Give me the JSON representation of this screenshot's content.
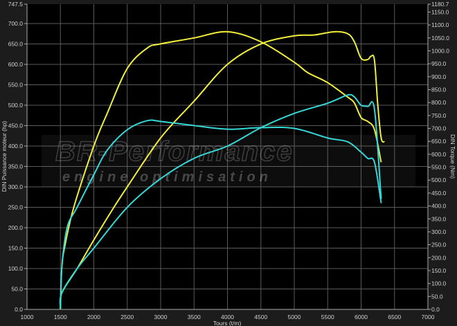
{
  "chart_data": {
    "type": "line",
    "xlabel": "Tours (t/m)",
    "ylabel": "DIN Puissance moteur (hp)",
    "y2label": "DIN Torque (Nm)",
    "xlim": [
      1000,
      7000
    ],
    "ylim": [
      0,
      747.5
    ],
    "y2lim": [
      0,
      1180.7
    ],
    "x_ticks": [
      1000,
      1500,
      2000,
      2500,
      3000,
      3500,
      4000,
      4500,
      5000,
      5500,
      6000,
      6500,
      7000
    ],
    "y_ticks": [
      "0.0",
      "50.0",
      "100.0",
      "150.0",
      "200.0",
      "250.0",
      "300.0",
      "350.0",
      "400.0",
      "450.0",
      "500.0",
      "550.0",
      "600.0",
      "650.0",
      "700.0",
      "747.5"
    ],
    "y2_ticks": [
      "0.0",
      "50.0",
      "100.0",
      "150.0",
      "200.0",
      "250.0",
      "300.0",
      "350.0",
      "400.0",
      "450.0",
      "500.0",
      "550.0",
      "600.0",
      "650.0",
      "700.0",
      "750.0",
      "800.0",
      "850.0",
      "900.0",
      "950.0",
      "1000.0",
      "1050.0",
      "1100.0",
      "1150.0",
      "1180.7"
    ],
    "grid": true,
    "watermark": {
      "line1": "BR-Performance",
      "line2": "engine optimisation"
    },
    "series": [
      {
        "axis": "y2",
        "color": "#f2ef3a",
        "x": [
          1500,
          1520,
          1560,
          1700,
          2000,
          2200,
          2500,
          2800,
          3000,
          3500,
          4000,
          4500,
          5000,
          5200,
          5500,
          5800,
          5900,
          6000,
          6100,
          6200,
          6300
        ],
        "y": [
          0,
          158,
          237,
          395,
          632,
          758,
          932,
          1011,
          1027,
          1050,
          1074,
          1035,
          956,
          916,
          877,
          821,
          798,
          742,
          727,
          695,
          569
        ]
      },
      {
        "axis": "y",
        "color": "#f2ef3a",
        "x": [
          1500,
          1520,
          1750,
          2000,
          2300,
          2500,
          3000,
          3500,
          4000,
          4500,
          5000,
          5300,
          5600,
          5800,
          5900,
          6000,
          6100,
          6150,
          6200,
          6250,
          6300,
          6350
        ],
        "y": [
          0,
          40,
          100,
          170,
          250,
          300,
          420,
          510,
          600,
          650,
          670,
          672,
          680,
          675,
          655,
          615,
          612,
          620,
          610,
          500,
          420,
          410
        ]
      },
      {
        "axis": "y2",
        "color": "#36d8d8",
        "x": [
          1500,
          1520,
          1600,
          1750,
          2000,
          2200,
          2500,
          2800,
          3000,
          3500,
          4000,
          4500,
          5000,
          5500,
          5800,
          6000,
          6100,
          6200,
          6300
        ],
        "y": [
          0,
          158,
          316,
          395,
          521,
          616,
          695,
          730,
          727,
          711,
          697,
          703,
          700,
          663,
          648,
          608,
          584,
          569,
          411
        ]
      },
      {
        "axis": "y",
        "color": "#36d8d8",
        "x": [
          1500,
          1520,
          1750,
          2000,
          2500,
          3000,
          3500,
          4000,
          4500,
          5000,
          5500,
          5800,
          5900,
          6000,
          6100,
          6200,
          6300
        ],
        "y": [
          0,
          40,
          100,
          150,
          250,
          320,
          370,
          400,
          445,
          480,
          505,
          525,
          520,
          500,
          497,
          490,
          270
        ]
      }
    ]
  }
}
